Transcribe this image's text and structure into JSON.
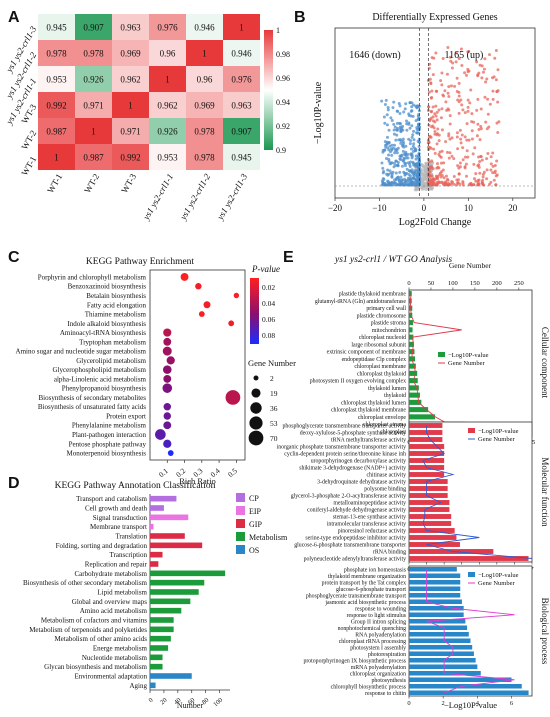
{
  "panels": {
    "A": "A",
    "B": "B",
    "C": "C",
    "D": "D",
    "E": "E"
  },
  "colors": {
    "heat_low": "#1a9850",
    "heat_mid": "#ffffff",
    "heat_high": "#e8393a",
    "volcano_down": "#4d8fcc",
    "volcano_up": "#e8675c",
    "volcano_ns": "#b9b9b9",
    "go_bar_cc": "#1e9b3c",
    "go_bar_mf": "#e03a4c",
    "go_bar_bp": "#2887c8",
    "go_line_cc": "#e03a4c",
    "go_line_mf": "#2e5bd6",
    "go_line_bp": "#e03ad6",
    "kegg_CP": "#b36ee0",
    "kegg_EIP": "#ea75e2",
    "kegg_GIP": "#dc2b45",
    "kegg_Metabolism": "#1b9b3a",
    "kegg_OS": "#2a86c6"
  },
  "chart_data": [
    {
      "type": "heatmap",
      "panel": "A",
      "rows": [
        "ys1 ys2-crl1-3",
        "ys1 ys2-crl1-2",
        "ys1 ys2-crl1-1",
        "WT-3",
        "WT-2",
        "WT-1"
      ],
      "columns": [
        "WT-1",
        "WT-2",
        "WT-3",
        "ys1 ys2-crl1-1",
        "ys1 ys2-crl1-2",
        "ys1 ys2-crl1-3"
      ],
      "values": [
        [
          0.945,
          0.907,
          0.963,
          0.976,
          0.946,
          1
        ],
        [
          0.978,
          0.978,
          0.969,
          0.96,
          1,
          0.946
        ],
        [
          0.953,
          0.926,
          0.962,
          1,
          0.96,
          0.976
        ],
        [
          0.992,
          0.971,
          1,
          0.962,
          0.969,
          0.963
        ],
        [
          0.987,
          1,
          0.971,
          0.926,
          0.978,
          0.907
        ],
        [
          1,
          0.987,
          0.992,
          0.953,
          0.978,
          0.945
        ]
      ],
      "colorbar_ticks": [
        "1",
        "0.98",
        "0.96",
        "0.94",
        "0.92",
        "0.9"
      ],
      "zlim": [
        0.9,
        1
      ]
    },
    {
      "type": "scatter",
      "panel": "B",
      "title": "Differentially Expressed Genes",
      "xlabel": "Log2Fold Change",
      "ylabel": "−Log10P-value",
      "xlim": [
        -20,
        25
      ],
      "xticks": [
        "−20",
        "−10",
        "0",
        "10",
        "20"
      ],
      "down_label": "1646 (down)",
      "up_label": "1165 (up)",
      "series": [
        {
          "count": 1646
        },
        {
          "count": 1165
        }
      ]
    },
    {
      "type": "scatter",
      "panel": "C",
      "title": "KEGG Pathway Enrichment",
      "xlabel": "Rich Ratio",
      "xticks": [
        "0.1",
        "0.2",
        "0.3",
        "0.4",
        "0.5"
      ],
      "color_legend_title": "P-value",
      "color_ticks": [
        "0.02",
        "0.04",
        "0.06",
        "0.08"
      ],
      "size_legend_title": "Gene Number",
      "size_legend": [
        "2",
        "19",
        "36",
        "53",
        "70"
      ],
      "pathways": [
        "Porphyrin and chlorophyll metabolism",
        "Benzoxazinoid biosynthesis",
        "Betalain biosynthesis",
        "Fatty acid elongation",
        "Thiamine metabolism",
        "Indole alkaloid biosynthesis",
        "Aminoacyl-tRNA biosynthesis",
        "Tryptophan metabolism",
        "Amino sugar and nucleotide sugar metabolism",
        "Glycerolipid metabolism",
        "Glycerophospholipid metabolism",
        "alpha-Linolenic acid metabolism",
        "Phenylpropanoid biosynthesis",
        "Biosynthesis of secondary metabolites",
        "Biosynthesis of unsaturated fatty acids",
        "Protein export",
        "Phenylalanine metabolism",
        "Plant-pathogen interaction",
        "Pentose phosphate pathway",
        "Monoterpenoid biosynthesis"
      ],
      "rich_ratio": [
        0.2,
        0.28,
        0.5,
        0.33,
        0.3,
        0.47,
        0.1,
        0.1,
        0.1,
        0.12,
        0.1,
        0.1,
        0.1,
        0.48,
        0.1,
        0.1,
        0.1,
        0.06,
        0.1,
        0.12
      ],
      "p_value": [
        0.0,
        0.005,
        0.003,
        0.005,
        0.003,
        0.006,
        0.03,
        0.04,
        0.04,
        0.045,
        0.05,
        0.05,
        0.055,
        0.03,
        0.06,
        0.06,
        0.06,
        0.065,
        0.07,
        0.085
      ],
      "gene_number": [
        12,
        6,
        3,
        8,
        4,
        4,
        14,
        12,
        18,
        14,
        16,
        12,
        22,
        70,
        10,
        10,
        12,
        30,
        14,
        4
      ]
    },
    {
      "type": "bar",
      "panel": "D",
      "title": "KEGG Pathway Annotation Classification",
      "xlabel": "Number",
      "xticks": [
        "0",
        "20",
        "40",
        "60",
        "80",
        "100"
      ],
      "xlim": [
        0,
        115
      ],
      "legend": [
        "CP",
        "EIP",
        "GIP",
        "Metabolism",
        "OS"
      ],
      "categories": [
        "Transport and catabolism",
        "Cell growth and death",
        "Signal transduction",
        "Membrane transport",
        "Translation",
        "Folding, sorting and degradation",
        "Transcription",
        "Replication and repair",
        "Carbohydrate metabolism",
        "Biosynthesis of other secondary metabolism",
        "Lipid metabolism",
        "Global and overview maps",
        "Amino acid metabolism",
        "Metabolism of cofactors and vitamins",
        "Metabolism of terpenoids and polyketides",
        "Metabolism of other amino acids",
        "Energe metabolism",
        "Nucleotide metabolism",
        "Glycan biosynthesis and metabolism",
        "Environmental adaptation",
        "Aging"
      ],
      "groups": [
        "CP",
        "CP",
        "EIP",
        "EIP",
        "GIP",
        "GIP",
        "GIP",
        "GIP",
        "Metabolism",
        "Metabolism",
        "Metabolism",
        "Metabolism",
        "Metabolism",
        "Metabolism",
        "Metabolism",
        "Metabolism",
        "Metabolism",
        "Metabolism",
        "Metabolism",
        "OS",
        "OS"
      ],
      "values": [
        38,
        20,
        55,
        5,
        50,
        75,
        18,
        12,
        108,
        78,
        70,
        58,
        45,
        34,
        34,
        30,
        26,
        18,
        18,
        60,
        8
      ]
    },
    {
      "type": "bar",
      "panel": "E",
      "title": "ys1 ys2-crl1 / WT GO Analysis",
      "xlabel": "−Log10P-value",
      "legend_p": "−Log10P-value",
      "legend_g": "Gene Number",
      "gene_axis_label": "Gene Number",
      "sections": [
        {
          "name": "Cellular component",
          "gene_ticks": [
            "0",
            "50",
            "100",
            "150",
            "200",
            "250"
          ],
          "gene_max": 280,
          "p_ticks": [
            "0",
            "5",
            "10",
            "15",
            "20",
            "25",
            "30",
            "35",
            "40",
            "45"
          ],
          "p_max": 45,
          "terms": [
            "plastide thylakoid membrane",
            "glutamyl-tRNA (Gln) amidotransferase",
            "primary cell wall",
            "plastide chromosome",
            "plastide stroma",
            "mitochondrion",
            "chloroplast nucleoid",
            "large ribosomal subunit",
            "extrinsic component of membrane",
            "endopeptidase Clp complex",
            "chloroplast membrane",
            "chloroplast thylakoid",
            "photosystem II oxygen evolving complex",
            "thylakoid lumen",
            "thylakoid",
            "chloroplast thylakoid lumen",
            "chloroplast thylakoid membrane",
            "chloroplast envelope",
            "chloroplast stroma",
            "chloroplast"
          ],
          "p_values": [
            1.0,
            1.0,
            1.2,
            1.2,
            1.5,
            1.3,
            1.6,
            1.8,
            2.0,
            2.2,
            2.5,
            3.0,
            3.2,
            3.6,
            4.0,
            4.5,
            7.0,
            9.5,
            20.5,
            44.0
          ],
          "gene_numbers": [
            5,
            3,
            4,
            5,
            12,
            120,
            8,
            10,
            8,
            6,
            12,
            15,
            10,
            18,
            20,
            22,
            40,
            60,
            90,
            240
          ]
        },
        {
          "name": "Molecular function",
          "p_ticks": [
            "0",
            "1",
            "2",
            "3",
            "4",
            "5",
            "6",
            "7"
          ],
          "p_max": 7,
          "terms": [
            "phosphoglycerate transmembrane transporter activity",
            "deoxy-xylulose-5-phosphate synthase activity",
            "tRNA methyltransferase activity",
            "inorganic phosphate transmembrane transporter activity",
            "cyclin-dependent protein serine/threonine kinase inh",
            "uroporphyrinogen decarboxylase activity",
            "shikimate 3-dehydrogenase (NADP+) activity",
            "chitinase activity",
            "3-dehydroquinate dehydratase activity",
            "polysome binding",
            "glycerol-3-phosphate 2-O-acyltransferase activity",
            "metalloaminopeptidase activity",
            "coniferyl-aldehyde dehydrogenase activity",
            "stemar-13-ene synthase activity",
            "intramolecular transferase activity",
            "pinoresinol reductase activity",
            "serine-type endopeptidase inhibitor activity",
            "glucose-6-phosphate transmembrane transporter",
            "rRNA binding",
            "polyneucleotide adenylyltransferase activity"
          ],
          "p_values": [
            1.9,
            1.9,
            1.9,
            2.0,
            2.0,
            2.0,
            2.0,
            2.0,
            2.2,
            2.2,
            2.2,
            2.3,
            2.3,
            2.4,
            2.4,
            2.6,
            2.7,
            2.9,
            4.8,
            6.8
          ],
          "gene_numbers": [
            1.0,
            1.0,
            1.2,
            1.6,
            2.0,
            0.8,
            1.0,
            2.5,
            1.0,
            1.0,
            1.0,
            1.8,
            0.9,
            0.9,
            0.8,
            1.0,
            4.0,
            1.0,
            2.5,
            7.0
          ],
          "gene_max": 7
        },
        {
          "name": "Biological process",
          "p_ticks": [
            "0",
            "2",
            "4",
            "6"
          ],
          "p_max": 7.2,
          "terms": [
            "phosphate ion homeostasis",
            "thylakoid membrane organization",
            "protein transport by the Tat complex",
            "glucose-6-phosphate transport",
            "phosphoglycerate transmembrane transport",
            "jasmonic acid biosynthetic process",
            "response to wounding",
            "response to light stimulus",
            "Group II intron splicing",
            "nonphotochemical quenching",
            "RNA polyadenylation",
            "chloroplast rRNA processing",
            "photosystem I assembly",
            "photorespiration",
            "protoporphyrinogen IX biosynthetic process",
            "mRNA polyadenylation",
            "chloroplast organization",
            "photosynthesis",
            "chlorophyll biosynthetic process",
            "response to chitin"
          ],
          "p_values": [
            2.8,
            3.0,
            3.0,
            3.0,
            3.0,
            3.1,
            3.2,
            3.2,
            3.3,
            3.4,
            3.5,
            3.6,
            3.7,
            3.8,
            3.9,
            4.0,
            4.2,
            6.0,
            6.6,
            7.0
          ],
          "gene_numbers": [
            1.0,
            1.0,
            1.0,
            1.0,
            1.0,
            1.0,
            2.5,
            6.0,
            1.0,
            2.0,
            2.0,
            2.0,
            2.5,
            2.5,
            2.0,
            2.0,
            2.0,
            6.0,
            3.0,
            2.0
          ],
          "gene_max": 7
        }
      ]
    }
  ]
}
